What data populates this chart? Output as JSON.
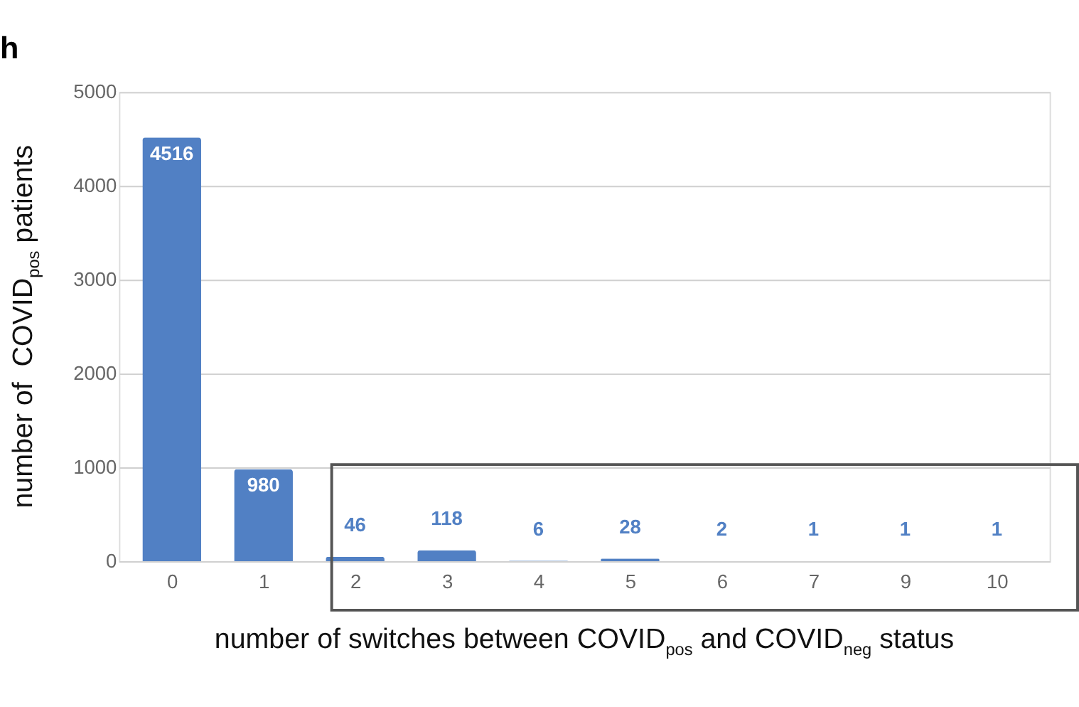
{
  "chart_data": {
    "type": "bar",
    "title": "h",
    "xlabel": "number of switches between COVID$_{pos}$ and COVID$_{neg}$ status",
    "ylabel": "number of  COVID$_{pos}$ patients",
    "categories": [
      "0",
      "1",
      "2",
      "3",
      "4",
      "5",
      "6",
      "7",
      "9",
      "10"
    ],
    "values": [
      4516,
      980,
      46,
      118,
      6,
      28,
      2,
      1,
      1,
      1
    ],
    "color": "#5180c4",
    "ylim": [
      0,
      5000
    ],
    "yticks": [
      0,
      1000,
      2000,
      3000,
      4000,
      5000
    ],
    "grid": "y",
    "data_labels": true
  }
}
